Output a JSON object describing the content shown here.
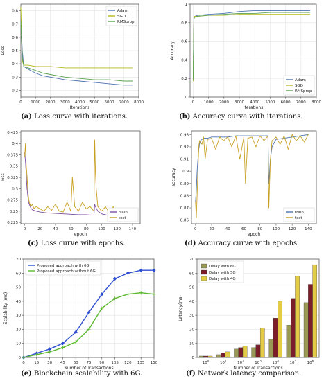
{
  "captions": {
    "a": {
      "tag": "(a)",
      "text": "Loss curve with iterations."
    },
    "b": {
      "tag": "(b)",
      "text": "Accuracy curve with iterations."
    },
    "c": {
      "tag": "(c)",
      "text": "Loss curve with epochs."
    },
    "d": {
      "tag": "(d)",
      "text": "Accuracy curve with epochs."
    },
    "e": {
      "tag": "(e)",
      "text": "Blockchain scalability with 6G."
    },
    "f": {
      "tag": "(f)",
      "text": "Network latency comparison."
    }
  },
  "chart_data": [
    {
      "id": "a",
      "type": "line",
      "xlabel": "Iterations",
      "ylabel": "Loss",
      "xlim": [
        0,
        8000
      ],
      "ylim": [
        0.15,
        0.85
      ],
      "xticks": [
        0,
        1000,
        2000,
        3000,
        4000,
        5000,
        6000,
        7000,
        8000
      ],
      "yticks": [
        0.2,
        0.3,
        0.4,
        0.5,
        0.6,
        0.7,
        0.8
      ],
      "grid": true,
      "legend": "top-right",
      "series": [
        {
          "name": "Adam",
          "color": "#4c72b0",
          "x": [
            0,
            100,
            200,
            500,
            1000,
            1500,
            2000,
            3000,
            4000,
            5000,
            6000,
            7000,
            7600
          ],
          "y": [
            0.73,
            0.5,
            0.38,
            0.36,
            0.33,
            0.31,
            0.3,
            0.28,
            0.27,
            0.26,
            0.25,
            0.24,
            0.24
          ]
        },
        {
          "name": "SGD",
          "color": "#b5b81a",
          "x": [
            0,
            100,
            200,
            500,
            1000,
            1500,
            2000,
            3000,
            4000,
            5000,
            6000,
            7000,
            7600
          ],
          "y": [
            0.83,
            0.42,
            0.39,
            0.39,
            0.38,
            0.38,
            0.38,
            0.37,
            0.37,
            0.37,
            0.37,
            0.37,
            0.37
          ]
        },
        {
          "name": "RMSprop",
          "color": "#59a14f",
          "x": [
            0,
            100,
            200,
            500,
            1000,
            1500,
            2000,
            3000,
            4000,
            5000,
            6000,
            7000,
            7600
          ],
          "y": [
            0.72,
            0.45,
            0.38,
            0.37,
            0.35,
            0.33,
            0.32,
            0.3,
            0.29,
            0.28,
            0.28,
            0.27,
            0.27
          ]
        }
      ]
    },
    {
      "id": "b",
      "type": "line",
      "xlabel": "Iterations",
      "ylabel": "Accuracy",
      "xlim": [
        -200,
        8000
      ],
      "ylim": [
        0.0,
        1.0
      ],
      "xticks": [
        0,
        1000,
        2000,
        3000,
        4000,
        5000,
        6000,
        7000,
        8000
      ],
      "yticks": [
        0.0,
        0.2,
        0.4,
        0.6,
        0.8,
        1.0
      ],
      "grid": true,
      "legend": "bottom-right",
      "series": [
        {
          "name": "Adam",
          "color": "#4c72b0",
          "x": [
            0,
            50,
            100,
            300,
            1000,
            2000,
            3000,
            4000,
            5000,
            6000,
            7000,
            7600
          ],
          "y": [
            0.2,
            0.85,
            0.87,
            0.88,
            0.89,
            0.9,
            0.92,
            0.93,
            0.93,
            0.93,
            0.93,
            0.93
          ]
        },
        {
          "name": "SGD",
          "color": "#b5b81a",
          "x": [
            0,
            50,
            100,
            300,
            1000,
            2000,
            3000,
            4000,
            5000,
            6000,
            7000,
            7600
          ],
          "y": [
            0.17,
            0.86,
            0.87,
            0.87,
            0.88,
            0.88,
            0.89,
            0.89,
            0.89,
            0.89,
            0.89,
            0.89
          ]
        },
        {
          "name": "RMSprop",
          "color": "#59a14f",
          "x": [
            0,
            50,
            100,
            300,
            1000,
            2000,
            3000,
            4000,
            5000,
            6000,
            7000,
            7600
          ],
          "y": [
            0.18,
            0.84,
            0.86,
            0.87,
            0.88,
            0.89,
            0.9,
            0.9,
            0.91,
            0.91,
            0.91,
            0.91
          ]
        }
      ]
    },
    {
      "id": "c",
      "type": "line",
      "xlabel": "epoch",
      "ylabel": "loss",
      "xlim": [
        -5,
        150
      ],
      "ylim": [
        0.222,
        0.428
      ],
      "xticks": [
        0,
        20,
        40,
        60,
        80,
        100,
        120,
        140
      ],
      "yticks": [
        0.225,
        0.25,
        0.275,
        0.3,
        0.325,
        0.35,
        0.375,
        0.4,
        0.425
      ],
      "grid": false,
      "legend": "bottom-right",
      "series": [
        {
          "name": "train",
          "color": "#7b4fa0",
          "x": [
            0,
            1,
            2,
            3,
            4,
            5,
            6,
            8,
            10,
            15,
            20,
            30,
            40,
            50,
            60,
            70,
            80,
            90,
            91,
            92,
            95,
            100,
            110,
            120,
            130,
            140
          ],
          "y": [
            0.38,
            0.36,
            0.33,
            0.3,
            0.285,
            0.27,
            0.265,
            0.257,
            0.253,
            0.25,
            0.248,
            0.246,
            0.245,
            0.244,
            0.243,
            0.242,
            0.242,
            0.241,
            0.265,
            0.26,
            0.25,
            0.244,
            0.24,
            0.238,
            0.237,
            0.236
          ]
        },
        {
          "name": "test",
          "color": "#c8a020",
          "x": [
            0,
            1,
            2,
            3,
            4,
            5,
            6,
            8,
            10,
            12,
            15,
            20,
            25,
            30,
            35,
            40,
            45,
            50,
            55,
            60,
            62,
            65,
            70,
            75,
            80,
            85,
            90,
            91,
            92,
            93,
            95,
            100,
            105,
            110,
            115,
            120,
            125,
            130,
            135,
            140
          ],
          "y": [
            0.37,
            0.4,
            0.35,
            0.33,
            0.3,
            0.28,
            0.27,
            0.26,
            0.265,
            0.256,
            0.26,
            0.255,
            0.25,
            0.26,
            0.252,
            0.265,
            0.25,
            0.248,
            0.27,
            0.25,
            0.325,
            0.26,
            0.25,
            0.27,
            0.255,
            0.26,
            0.25,
            0.408,
            0.335,
            0.3,
            0.26,
            0.25,
            0.26,
            0.245,
            0.26,
            0.242,
            0.255,
            0.248,
            0.24,
            0.245
          ]
        }
      ]
    },
    {
      "id": "d",
      "type": "line",
      "xlabel": "epoch",
      "ylabel": "accuracy",
      "xlim": [
        -5,
        150
      ],
      "ylim": [
        0.857,
        0.933
      ],
      "xticks": [
        0,
        20,
        40,
        60,
        80,
        100,
        120,
        140
      ],
      "yticks": [
        0.86,
        0.87,
        0.88,
        0.89,
        0.9,
        0.91,
        0.92,
        0.93
      ],
      "grid": false,
      "legend": "bottom-right",
      "series": [
        {
          "name": "train",
          "color": "#4c72b0",
          "x": [
            0,
            1,
            2,
            3,
            4,
            5,
            6,
            8,
            10,
            15,
            20,
            30,
            40,
            50,
            60,
            70,
            80,
            90,
            91,
            92,
            93,
            95,
            100,
            110,
            120,
            130,
            140
          ],
          "y": [
            0.875,
            0.885,
            0.9,
            0.91,
            0.918,
            0.922,
            0.925,
            0.926,
            0.927,
            0.927,
            0.928,
            0.928,
            0.928,
            0.929,
            0.929,
            0.929,
            0.929,
            0.929,
            0.89,
            0.9,
            0.91,
            0.92,
            0.926,
            0.927,
            0.928,
            0.929,
            0.93
          ]
        },
        {
          "name": "test",
          "color": "#c8a020",
          "x": [
            0,
            1,
            2,
            3,
            4,
            5,
            8,
            10,
            12,
            15,
            20,
            25,
            30,
            35,
            40,
            45,
            50,
            55,
            60,
            62,
            65,
            70,
            75,
            80,
            85,
            90,
            91,
            92,
            93,
            95,
            100,
            105,
            110,
            115,
            120,
            125,
            130,
            135,
            140
          ],
          "y": [
            0.875,
            0.862,
            0.88,
            0.9,
            0.92,
            0.925,
            0.922,
            0.928,
            0.91,
            0.926,
            0.927,
            0.918,
            0.928,
            0.925,
            0.928,
            0.92,
            0.929,
            0.91,
            0.928,
            0.89,
            0.927,
            0.928,
            0.92,
            0.929,
            0.925,
            0.929,
            0.87,
            0.89,
            0.91,
            0.925,
            0.928,
            0.922,
            0.929,
            0.918,
            0.93,
            0.925,
            0.929,
            0.924,
            0.93
          ]
        }
      ]
    },
    {
      "id": "e",
      "type": "line",
      "xlabel": "Number of Transactions",
      "ylabel": "Scalability (ms)",
      "xlim": [
        0,
        150
      ],
      "ylim": [
        0,
        70
      ],
      "xticks": [
        0,
        15,
        30,
        45,
        60,
        75,
        90,
        105,
        120,
        135,
        150
      ],
      "yticks": [
        0,
        10,
        20,
        30,
        40,
        50,
        60,
        70
      ],
      "grid": true,
      "legend": "top-left",
      "series": [
        {
          "name": "Proposed approach with 6G",
          "color": "#2f4fd0",
          "marker": "diamond",
          "x": [
            0,
            15,
            30,
            45,
            60,
            75,
            90,
            105,
            120,
            135,
            150
          ],
          "y": [
            0,
            3,
            6,
            10,
            18,
            32,
            45,
            56,
            60,
            62,
            62
          ]
        },
        {
          "name": "Proposed approach without 6G",
          "color": "#5cb82e",
          "marker": "plus",
          "x": [
            0,
            15,
            30,
            45,
            60,
            75,
            90,
            105,
            120,
            135,
            150
          ],
          "y": [
            0,
            2,
            4,
            7,
            11,
            20,
            35,
            42,
            45,
            46,
            45
          ]
        }
      ]
    },
    {
      "id": "f",
      "type": "bar",
      "xlabel": "Number of Transactions",
      "ylabel": "Latency(ms)",
      "ylim": [
        0,
        70
      ],
      "yticks": [
        0,
        10,
        20,
        30,
        40,
        50,
        60,
        70
      ],
      "categories": [
        "10^0",
        "10^1",
        "10^2",
        "10^3",
        "10^4",
        "10^5",
        "10^6"
      ],
      "grid": true,
      "legend": "top-left",
      "series": [
        {
          "name": "Delay with 6G",
          "color": "#9a9a55",
          "values": [
            1,
            2,
            6,
            7,
            13,
            23,
            39
          ]
        },
        {
          "name": "Delay with 5G",
          "color": "#7a1f2a",
          "values": [
            1,
            3,
            7,
            9,
            28,
            42,
            52
          ]
        },
        {
          "name": "Delay with 4G",
          "color": "#e3cb46",
          "values": [
            1,
            4,
            8,
            21,
            40,
            58,
            66
          ]
        }
      ]
    }
  ]
}
